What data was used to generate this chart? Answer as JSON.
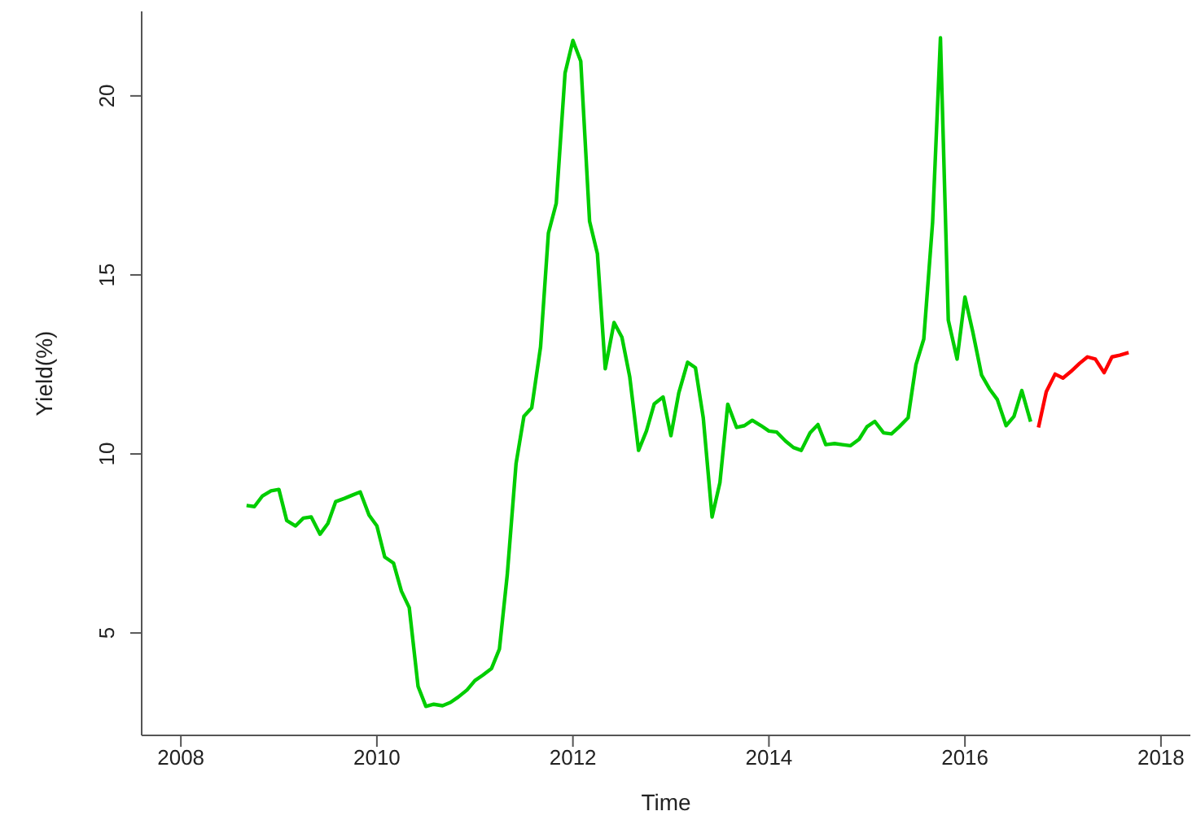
{
  "chart_data": {
    "type": "line",
    "xlabel": "Time",
    "ylabel": "Yield(%)",
    "xlim": [
      2007.6,
      2018.3
    ],
    "ylim": [
      2.14,
      22.36
    ],
    "xticks": [
      2008,
      2010,
      2012,
      2014,
      2016,
      2018
    ],
    "yticks": [
      5,
      10,
      15,
      20
    ],
    "grid": false,
    "marker": "none",
    "line_style": "solid",
    "series": [
      {
        "color": "#00cd00",
        "x": [
          2008.67,
          2008.75,
          2008.83,
          2008.92,
          2009.0,
          2009.08,
          2009.17,
          2009.25,
          2009.33,
          2009.42,
          2009.5,
          2009.58,
          2009.67,
          2009.75,
          2009.83,
          2009.92,
          2010.0,
          2010.08,
          2010.17,
          2010.25,
          2010.33,
          2010.42,
          2010.5,
          2010.58,
          2010.67,
          2010.75,
          2010.83,
          2010.92,
          2011.0,
          2011.08,
          2011.17,
          2011.25,
          2011.33,
          2011.42,
          2011.5,
          2011.58,
          2011.67,
          2011.75,
          2011.83,
          2011.92,
          2012.0,
          2012.08,
          2012.17,
          2012.25,
          2012.33,
          2012.42,
          2012.5,
          2012.58,
          2012.67,
          2012.75,
          2012.83,
          2012.92,
          2013.0,
          2013.08,
          2013.17,
          2013.25,
          2013.33,
          2013.42,
          2013.5,
          2013.58,
          2013.67,
          2013.75,
          2013.83,
          2013.92,
          2014.0,
          2014.08,
          2014.17,
          2014.25,
          2014.33,
          2014.42,
          2014.5,
          2014.58,
          2014.67,
          2014.75,
          2014.83,
          2014.92,
          2015.0,
          2015.08,
          2015.17,
          2015.25,
          2015.33,
          2015.42,
          2015.5,
          2015.58,
          2015.67,
          2015.75,
          2015.83,
          2015.92,
          2016.0,
          2016.08,
          2016.17,
          2016.25,
          2016.33,
          2016.42,
          2016.5,
          2016.58,
          2016.67
        ],
        "values": [
          8.56,
          8.53,
          8.82,
          8.97,
          9.01,
          8.14,
          7.99,
          8.21,
          8.24,
          7.76,
          8.06,
          8.67,
          8.76,
          8.85,
          8.94,
          8.29,
          7.99,
          7.12,
          6.95,
          6.17,
          5.71,
          3.51,
          2.95,
          3.01,
          2.97,
          3.06,
          3.21,
          3.41,
          3.67,
          3.82,
          4.01,
          4.55,
          6.62,
          9.73,
          11.05,
          11.29,
          12.99,
          16.17,
          17.0,
          20.64,
          21.55,
          20.97,
          16.5,
          15.59,
          12.38,
          13.67,
          13.26,
          12.15,
          10.1,
          10.64,
          11.4,
          11.59,
          10.51,
          11.7,
          12.56,
          12.41,
          11.01,
          8.24,
          9.2,
          11.39,
          10.74,
          10.79,
          10.94,
          10.79,
          10.64,
          10.61,
          10.36,
          10.18,
          10.1,
          10.59,
          10.82,
          10.26,
          10.29,
          10.26,
          10.23,
          10.41,
          10.76,
          10.91,
          10.59,
          10.56,
          10.76,
          11.01,
          12.49,
          13.21,
          16.47,
          21.62,
          13.74,
          12.65,
          14.38,
          13.41,
          12.2,
          11.82,
          11.52,
          10.79,
          11.05,
          11.77,
          10.9
        ]
      },
      {
        "color": "#ff0000",
        "x": [
          2016.75,
          2016.83,
          2016.92,
          2017.0,
          2017.08,
          2017.17,
          2017.25,
          2017.33,
          2017.42,
          2017.5,
          2017.58,
          2017.67
        ],
        "values": [
          10.74,
          11.74,
          12.23,
          12.12,
          12.3,
          12.53,
          12.71,
          12.65,
          12.27,
          12.71,
          12.76,
          12.83
        ]
      }
    ]
  }
}
